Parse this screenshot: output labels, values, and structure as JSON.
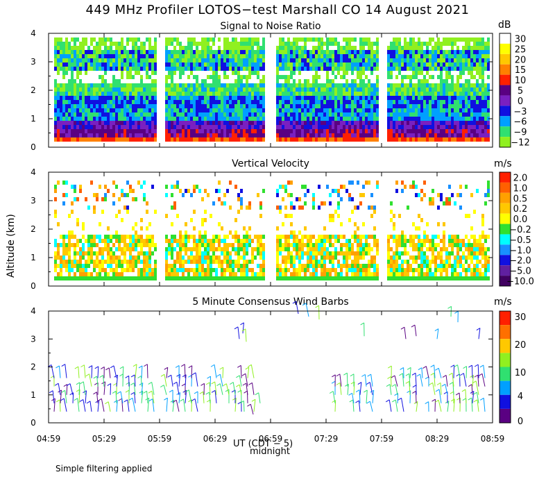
{
  "figure": {
    "title": "449 MHz Profiler LOTOS−test Marshall CO 14 August 2021",
    "y_axis_label": "Altitude (km)",
    "x_axis_label": "UT (CDT − 5)",
    "midnight_label": "midnight",
    "footer": "Simple filtering applied"
  },
  "chart_data": [
    {
      "type": "heatmap",
      "title": "Signal to Noise Ratio",
      "colorbar_unit": "dB",
      "colorbar_labels": [
        "30",
        "25",
        "20",
        "15",
        "10",
        "5",
        "0",
        "−3",
        "−6",
        "−9",
        "−12"
      ],
      "colorbar_colors": [
        "#ffffff",
        "#ffff00",
        "#ffc800",
        "#ff8000",
        "#ff2000",
        "#5a0082",
        "#7a20c0",
        "#1010e0",
        "#00a0ff",
        "#30e070",
        "#90f020"
      ],
      "yticks": [
        "0",
        "1",
        "2",
        "3",
        "4"
      ],
      "ylim": [
        0,
        4
      ],
      "xlim": [
        "04:59",
        "08:59"
      ]
    },
    {
      "type": "heatmap",
      "title": "Vertical Velocity",
      "colorbar_unit": "m/s",
      "colorbar_labels": [
        "2.0",
        "1.0",
        "0.5",
        "0.2",
        "0.0",
        "−0.2",
        "−0.5",
        "−1.0",
        "−2.0",
        "−5.0",
        "−10.0"
      ],
      "colorbar_colors": [
        "#ff2000",
        "#ff6000",
        "#ffa000",
        "#ffc800",
        "#ffff00",
        "#30e030",
        "#00ffff",
        "#1890ff",
        "#1010e0",
        "#6020a0",
        "#400060"
      ],
      "yticks": [
        "0",
        "1",
        "2",
        "3",
        "4"
      ],
      "ylim": [
        0,
        4
      ],
      "xlim": [
        "04:59",
        "08:59"
      ]
    },
    {
      "type": "scatter",
      "title": "5 Minute Consensus Wind Barbs",
      "colorbar_unit": "m/s",
      "colorbar_labels": [
        "30",
        "20",
        "10",
        "4",
        "0"
      ],
      "colorbar_colors": [
        "#ff2000",
        "#ff7000",
        "#ffc800",
        "#90f020",
        "#30e070",
        "#00a0ff",
        "#1010e0",
        "#5a0082"
      ],
      "yticks": [
        "0",
        "1",
        "2",
        "3",
        "4"
      ],
      "ylim": [
        0,
        4
      ],
      "xticks": [
        "04:59",
        "05:29",
        "05:59",
        "06:29",
        "06:59",
        "07:29",
        "07:59",
        "08:29",
        "08:59"
      ],
      "xlim": [
        "04:59",
        "08:59"
      ]
    }
  ]
}
